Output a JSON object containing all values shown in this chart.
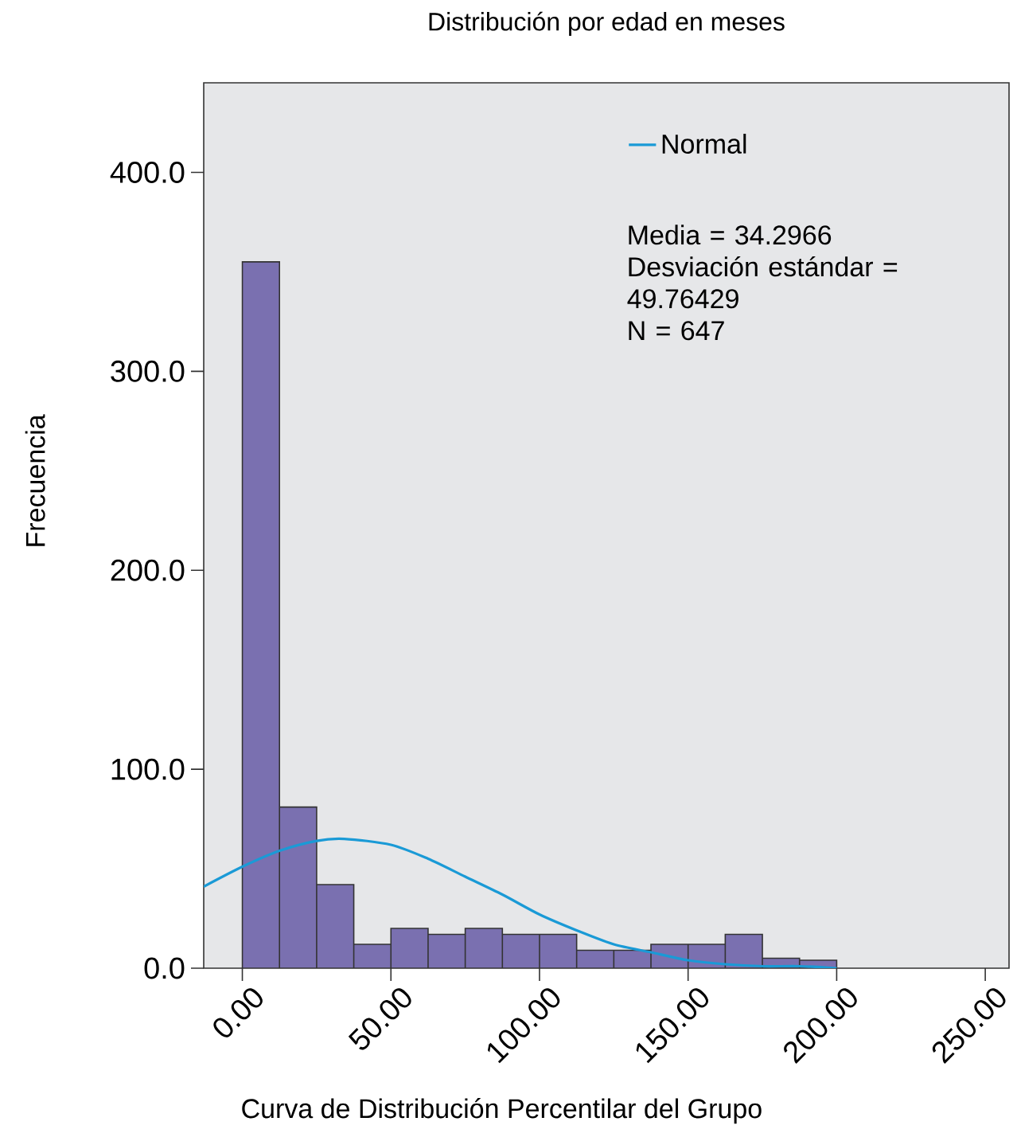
{
  "chart_data": {
    "type": "histogram",
    "title": "Distribución por edad en meses",
    "xlabel": "Curva de Distribución Percentilar del Grupo",
    "ylabel": "Frecuencia",
    "series": [
      {
        "color": "#7a70b0",
        "bins": [
          0,
          12.5,
          25,
          37.5,
          50,
          62.5,
          75,
          87.5,
          100,
          112.5,
          125,
          137.5,
          150,
          162.5,
          175,
          187.5,
          200
        ],
        "values": [
          355,
          81,
          42,
          12,
          20,
          17,
          20,
          17,
          17,
          9,
          9,
          12,
          12,
          17,
          5,
          4
        ]
      },
      {
        "type": "line",
        "name": "Normal",
        "color": "#1a9ad6",
        "x": [
          -13,
          0,
          12.5,
          25,
          34.3,
          50,
          62.5,
          75,
          87.5,
          100,
          112.5,
          125,
          137.5,
          150,
          162.5,
          175,
          187.5,
          200
        ],
        "values": [
          41,
          51,
          59,
          64,
          65,
          62,
          55,
          46,
          37,
          27,
          19,
          12,
          8,
          4,
          2,
          1,
          1,
          0
        ]
      }
    ],
    "annotations": [
      "Media = 34.2966",
      "Desviación estándar = 49.76429",
      "N = 647"
    ],
    "xlim": [
      -13,
      258
    ],
    "ylim": [
      0,
      445
    ],
    "xticks": [
      {
        "value": 0,
        "label": "0.00"
      },
      {
        "value": 50,
        "label": "50.00"
      },
      {
        "value": 100,
        "label": "100.00"
      },
      {
        "value": 150,
        "label": "150.00"
      },
      {
        "value": 200,
        "label": "200.00"
      },
      {
        "value": 250,
        "label": "250.00"
      }
    ],
    "yticks": [
      {
        "value": 0,
        "label": "0.0"
      },
      {
        "value": 100,
        "label": "100.0"
      },
      {
        "value": 200,
        "label": "200.0"
      },
      {
        "value": 300,
        "label": "300.0"
      },
      {
        "value": 400,
        "label": "400.0"
      }
    ],
    "legend": "top right",
    "grid": false,
    "marker": "none",
    "line_style": "solid"
  }
}
